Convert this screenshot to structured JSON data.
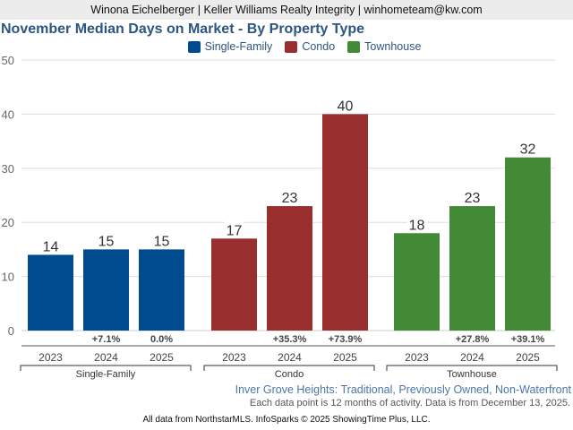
{
  "header": {
    "agent_line": "Winona Eichelberger | Keller Williams Realty Integrity | winhometeam@kw.com"
  },
  "chart_data": {
    "type": "bar",
    "title": "November Median Days on Market - By Property Type",
    "xlabel": "",
    "ylabel": "",
    "ylim": [
      0,
      50
    ],
    "yticks": [
      0,
      10,
      20,
      30,
      40,
      50
    ],
    "grid": true,
    "legend_position": "top-center",
    "legend": [
      {
        "name": "Single-Family",
        "color": "#004b8d"
      },
      {
        "name": "Condo",
        "color": "#992e2e"
      },
      {
        "name": "Townhouse",
        "color": "#438a36"
      }
    ],
    "groups": [
      {
        "name": "Single-Family",
        "color": "#004b8d",
        "categories": [
          "2023",
          "2024",
          "2025"
        ],
        "values": [
          14,
          15,
          15
        ],
        "changes": [
          "",
          "+7.1%",
          "0.0%"
        ]
      },
      {
        "name": "Condo",
        "color": "#992e2e",
        "categories": [
          "2023",
          "2024",
          "2025"
        ],
        "values": [
          17,
          23,
          40
        ],
        "changes": [
          "",
          "+35.3%",
          "+73.9%"
        ]
      },
      {
        "name": "Townhouse",
        "color": "#438a36",
        "categories": [
          "2023",
          "2024",
          "2025"
        ],
        "values": [
          18,
          23,
          32
        ],
        "changes": [
          "",
          "+27.8%",
          "+39.1%"
        ]
      }
    ]
  },
  "subtitle": "Inver Grove Heights: Traditional, Previously Owned, Non-Waterfront",
  "note": "Each data point is 12 months of activity. Data is from December 13, 2025.",
  "footer": "All data from NorthstarMLS. InfoSparks © 2025 ShowingTime Plus, LLC."
}
